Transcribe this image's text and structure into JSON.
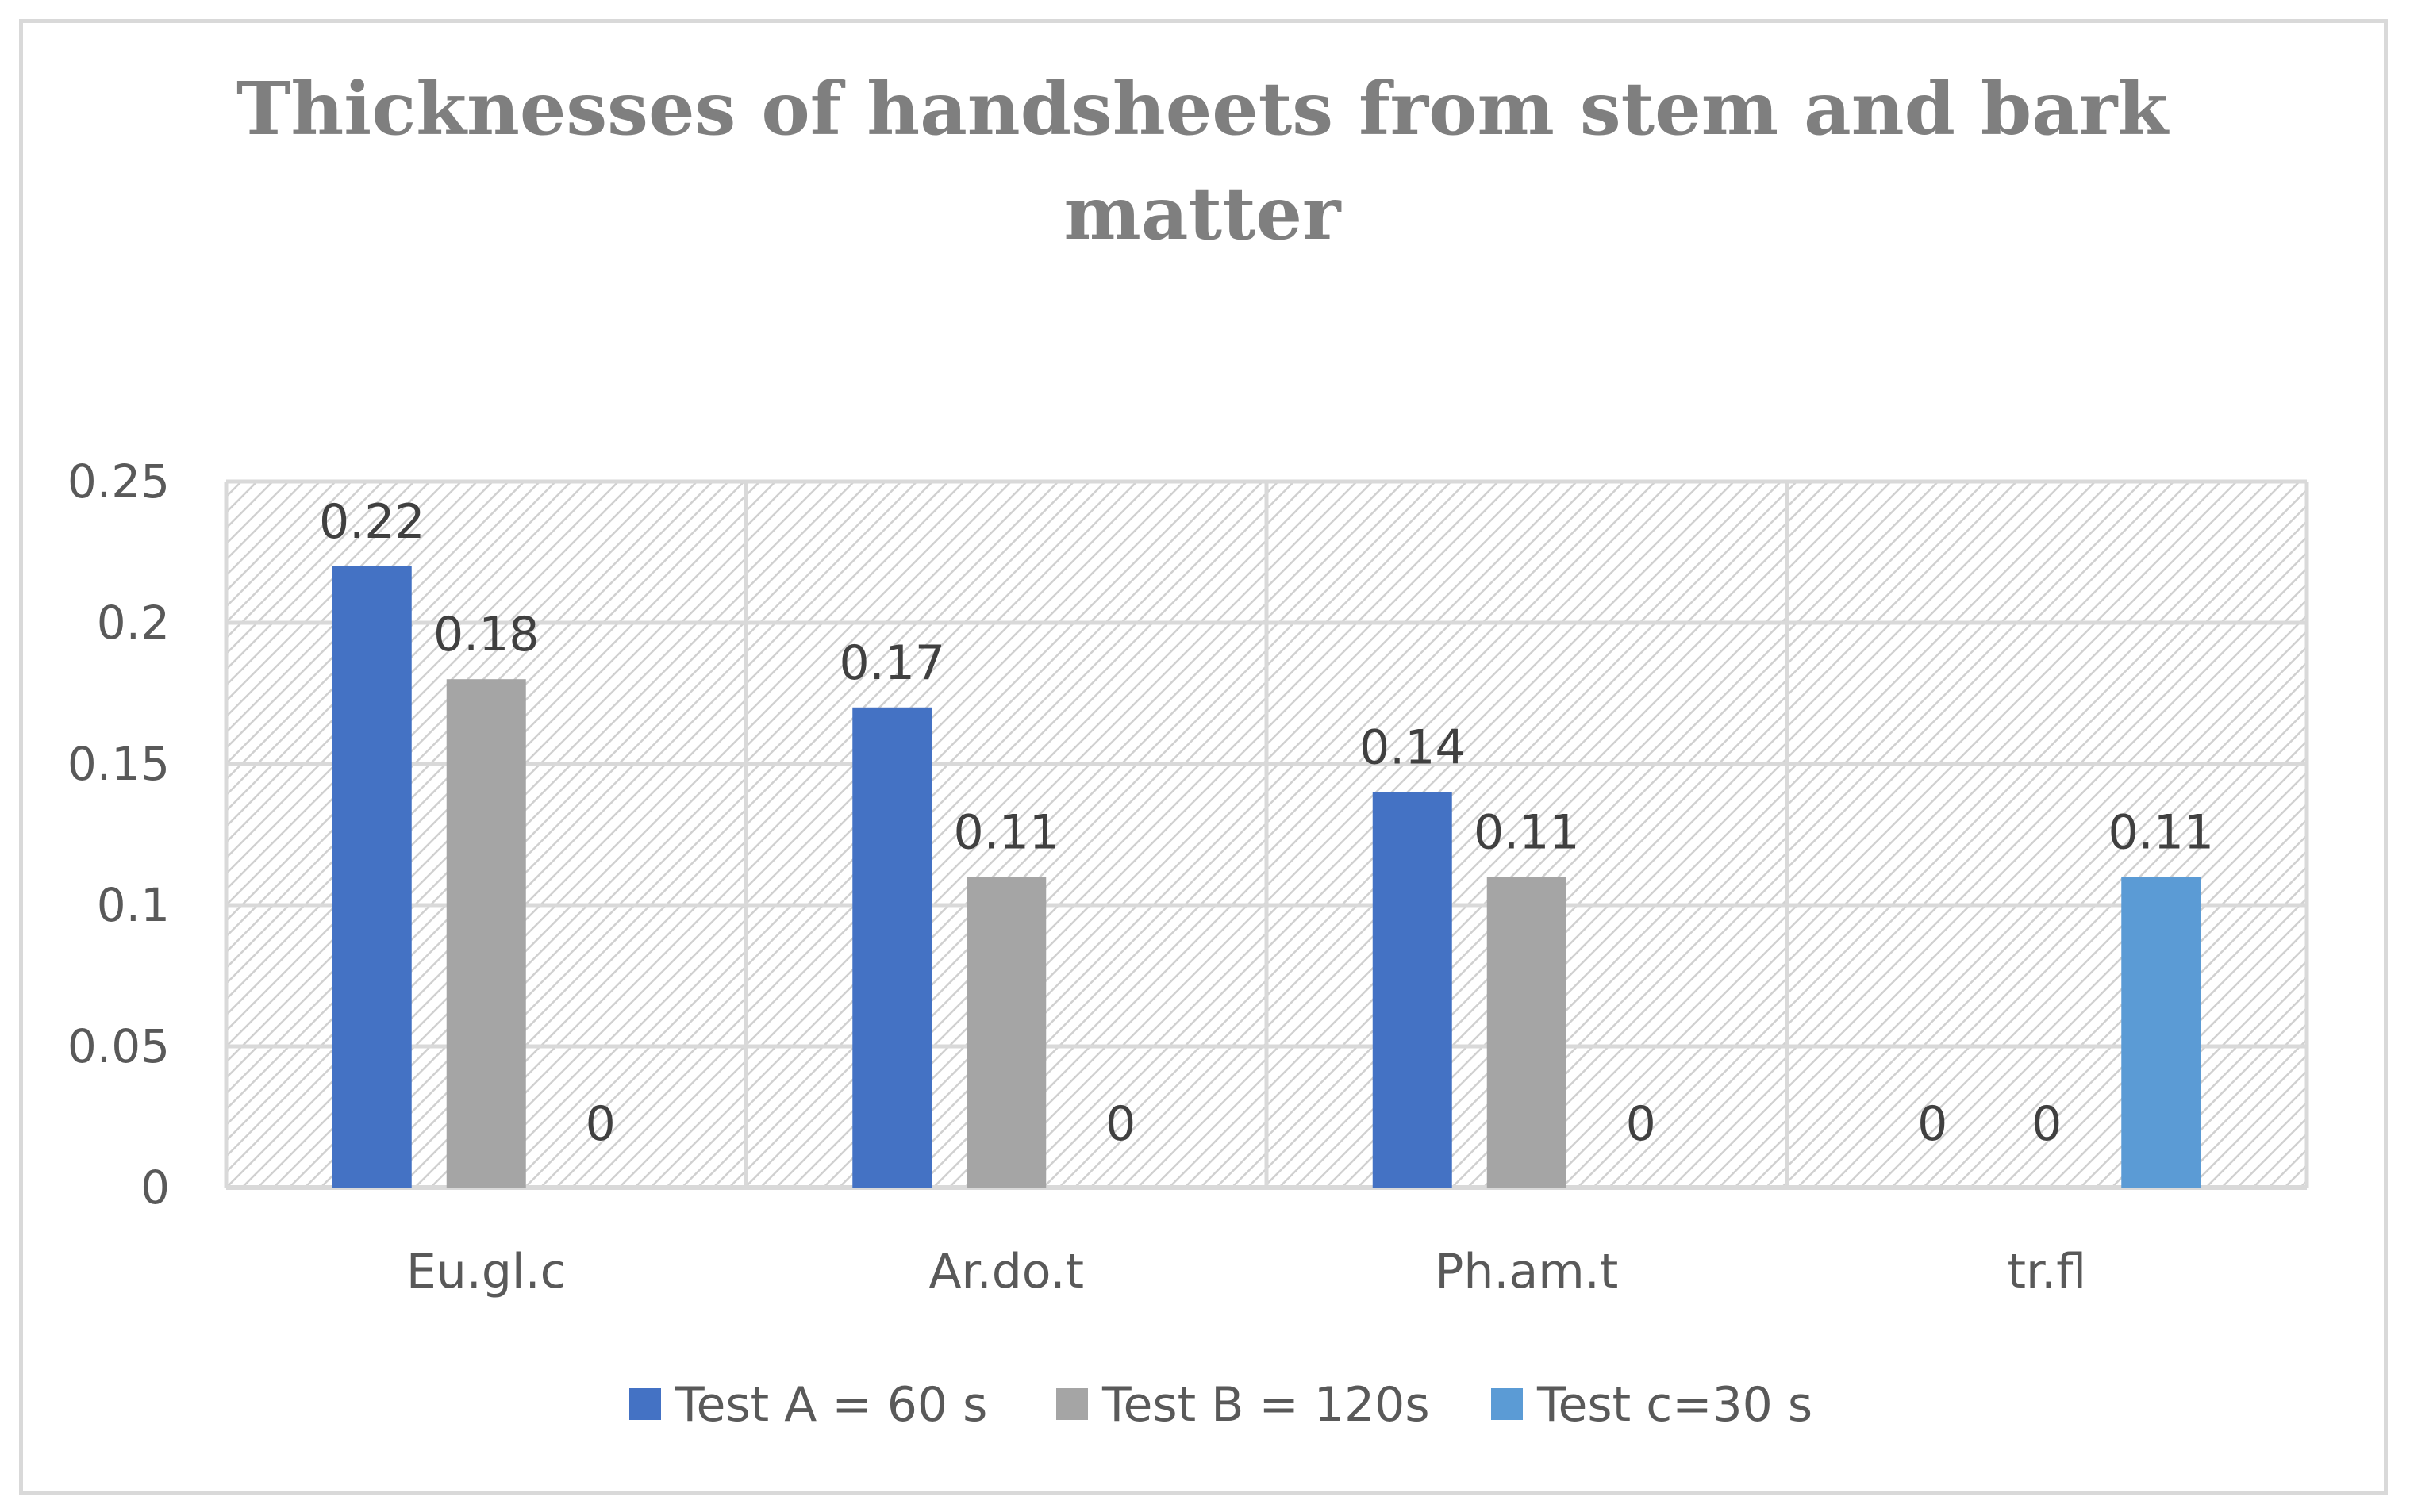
{
  "chart_data": {
    "type": "bar",
    "title": "Thicknesses of handsheets from stem and bark matter",
    "title_lines": [
      "Thicknesses of handsheets from stem and bark",
      "matter"
    ],
    "categories": [
      "Eu.gl.c",
      "Ar.do.t",
      "Ph.am.t",
      "tr.fl"
    ],
    "series": [
      {
        "name": "Test A = 60 s",
        "color": "#4472c4",
        "values": [
          0.22,
          0.17,
          0.14,
          0
        ]
      },
      {
        "name": "Test B = 120s",
        "color": "#a5a5a5",
        "values": [
          0.18,
          0.11,
          0.11,
          0
        ]
      },
      {
        "name": "Test c=30 s",
        "color": "#5b9bd5",
        "values": [
          0,
          0,
          0,
          0.11
        ]
      }
    ],
    "data_labels": [
      [
        "0.22",
        "0.17",
        "0.14",
        "0"
      ],
      [
        "0.18",
        "0.11",
        "0.11",
        "0"
      ],
      [
        "0",
        "0",
        "0",
        "0.11"
      ]
    ],
    "y_ticks": [
      "0",
      "0.05",
      "0.1",
      "0.15",
      "0.2",
      "0.25"
    ],
    "y_tick_values": [
      0,
      0.05,
      0.1,
      0.15,
      0.2,
      0.25
    ],
    "ylim": [
      0,
      0.25
    ],
    "xlabel": "",
    "ylabel": "",
    "grid": true,
    "legend_position": "bottom",
    "colors": {
      "grid": "#d9d9d9",
      "hatch": "#d0d0d0",
      "plot_background": "#ffffff",
      "title": "#7f7f7f",
      "axis_text": "#595959"
    }
  }
}
